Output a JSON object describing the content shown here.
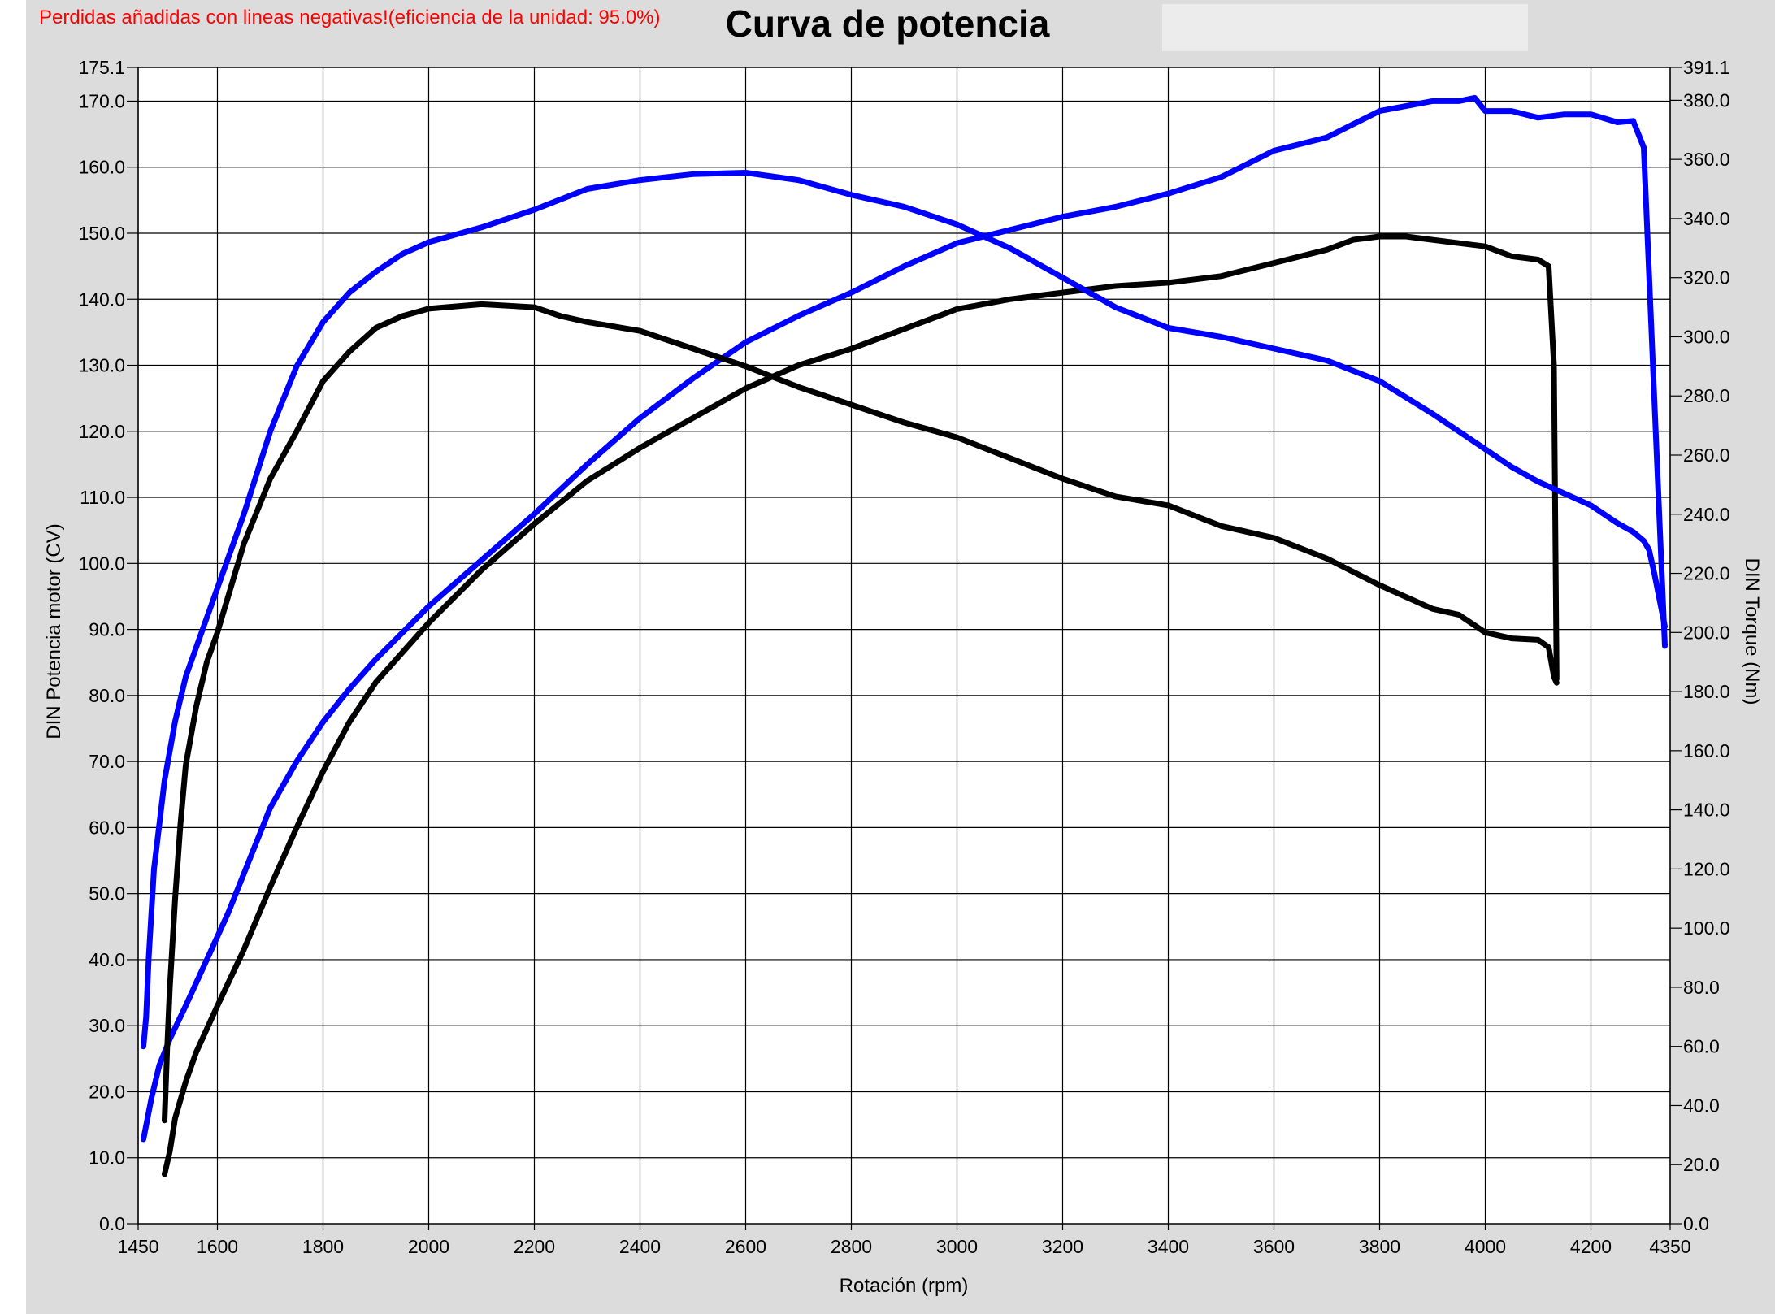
{
  "header": {
    "note": "Perdidas añadidas con lineas negativas!(eficiencia de la unidad: 95.0%)",
    "title": "Curva de potencia"
  },
  "chart_data": {
    "type": "line",
    "title": "Curva de potencia",
    "xlabel": "Rotación (rpm)",
    "ylabel": "DIN Potencia motor (CV)",
    "y2label": "DIN Torque (Nm)",
    "xlim": [
      1450,
      4350
    ],
    "ylim": [
      0,
      175.1
    ],
    "y2lim": [
      0,
      391.1
    ],
    "grid": true,
    "x_ticks": [
      1450,
      1600,
      1800,
      2000,
      2200,
      2400,
      2600,
      2800,
      3000,
      3200,
      3400,
      3600,
      3800,
      4000,
      4200,
      4350
    ],
    "y_ticks": [
      0,
      10,
      20,
      30,
      40,
      50,
      60,
      70,
      80,
      90,
      100,
      110,
      120,
      130,
      140,
      150,
      160,
      170,
      175.1
    ],
    "y_tick_labels": [
      "0.0",
      "10.0",
      "20.0",
      "30.0",
      "40.0",
      "50.0",
      "60.0",
      "70.0",
      "80.0",
      "90.0",
      "100.0",
      "110.0",
      "120.0",
      "130.0",
      "140.0",
      "150.0",
      "160.0",
      "170.0",
      "175.1"
    ],
    "y2_ticks": [
      0,
      20,
      40,
      60,
      80,
      100,
      120,
      140,
      160,
      180,
      200,
      220,
      240,
      260,
      280,
      300,
      320,
      340,
      360,
      380,
      391.1
    ],
    "y2_tick_labels": [
      "0.0",
      "20.0",
      "40.0",
      "60.0",
      "80.0",
      "100.0",
      "120.0",
      "140.0",
      "160.0",
      "180.0",
      "200.0",
      "220.0",
      "240.0",
      "260.0",
      "280.0",
      "300.0",
      "320.0",
      "340.0",
      "360.0",
      "380.0",
      "391.1"
    ],
    "series": [
      {
        "color": "#0000ff",
        "axis": "left",
        "x": [
          1460,
          1475,
          1490,
          1510,
          1540,
          1580,
          1620,
          1660,
          1700,
          1750,
          1800,
          1850,
          1900,
          1950,
          2000,
          2100,
          2200,
          2300,
          2400,
          2500,
          2600,
          2700,
          2800,
          2900,
          3000,
          3100,
          3200,
          3300,
          3400,
          3500,
          3600,
          3700,
          3800,
          3900,
          3950,
          3980,
          4000,
          4050,
          4100,
          4150,
          4200,
          4250,
          4280,
          4300,
          4320,
          4340
        ],
        "y": [
          12.8,
          19,
          24,
          28,
          33,
          40,
          47,
          55,
          63,
          70,
          76,
          81,
          85.5,
          89.5,
          93.5,
          100.5,
          107.5,
          115,
          122,
          128,
          133.5,
          137.5,
          141,
          145,
          148.5,
          150.5,
          152.5,
          154,
          156,
          158.5,
          162.5,
          164.5,
          168.5,
          170,
          170,
          170.5,
          168.5,
          168.5,
          167.5,
          168,
          168,
          166.8,
          167,
          163,
          125,
          87.5
        ]
      },
      {
        "color": "#000000",
        "axis": "left",
        "x": [
          1500,
          1510,
          1520,
          1540,
          1560,
          1600,
          1650,
          1700,
          1750,
          1800,
          1850,
          1900,
          2000,
          2100,
          2200,
          2300,
          2400,
          2500,
          2600,
          2700,
          2800,
          2900,
          3000,
          3100,
          3200,
          3300,
          3400,
          3500,
          3600,
          3700,
          3750,
          3800,
          3850,
          3900,
          3950,
          4000,
          4050,
          4100,
          4120,
          4130,
          4135
        ],
        "y": [
          7.5,
          11,
          16,
          21.5,
          26,
          33,
          41.5,
          51,
          60,
          68.5,
          76,
          82,
          91,
          99,
          106,
          112.5,
          117.5,
          122,
          126.5,
          130,
          132.5,
          135.5,
          138.5,
          140,
          141,
          142,
          142.5,
          143.5,
          145.5,
          147.5,
          149,
          149.5,
          149.5,
          149,
          148.5,
          148,
          146.5,
          146,
          145,
          130,
          82.5
        ]
      },
      {
        "color": "#0000ff",
        "axis": "right",
        "x": [
          1460,
          1465,
          1470,
          1480,
          1500,
          1520,
          1540,
          1560,
          1580,
          1600,
          1620,
          1650,
          1700,
          1750,
          1800,
          1850,
          1900,
          1950,
          2000,
          2100,
          2200,
          2300,
          2400,
          2500,
          2600,
          2700,
          2800,
          2900,
          3000,
          3100,
          3200,
          3300,
          3400,
          3500,
          3600,
          3700,
          3800,
          3900,
          3950,
          4000,
          4050,
          4100,
          4150,
          4200,
          4250,
          4280,
          4300,
          4310,
          4320,
          4340
        ],
        "y": [
          60,
          70,
          90,
          120,
          150,
          170,
          185,
          195,
          205,
          215,
          225,
          240,
          268,
          290,
          305,
          315,
          322,
          328,
          332,
          337,
          343,
          350,
          353,
          355,
          355.5,
          353,
          348,
          344,
          338,
          330,
          320,
          310,
          303,
          300,
          296,
          292,
          285,
          274,
          268,
          262,
          256,
          251,
          247,
          243,
          237,
          234,
          231,
          228,
          220,
          202
        ]
      },
      {
        "color": "#000000",
        "axis": "right",
        "x": [
          1500,
          1505,
          1510,
          1520,
          1530,
          1540,
          1560,
          1580,
          1600,
          1650,
          1700,
          1750,
          1800,
          1850,
          1900,
          1950,
          2000,
          2100,
          2200,
          2250,
          2300,
          2400,
          2500,
          2600,
          2700,
          2800,
          2900,
          3000,
          3100,
          3200,
          3300,
          3400,
          3500,
          3600,
          3700,
          3800,
          3900,
          3950,
          4000,
          4050,
          4100,
          4120,
          4130,
          4135
        ],
        "y": [
          35,
          60,
          80,
          110,
          135,
          155,
          175,
          190,
          200,
          230,
          252,
          268,
          285,
          295,
          303,
          307,
          309.5,
          311,
          310,
          307,
          305,
          302,
          296,
          290,
          283,
          277,
          271,
          266,
          259,
          252,
          246,
          243,
          236,
          232,
          225,
          216,
          208,
          206,
          200,
          198,
          197.5,
          195,
          185,
          183
        ]
      }
    ]
  }
}
